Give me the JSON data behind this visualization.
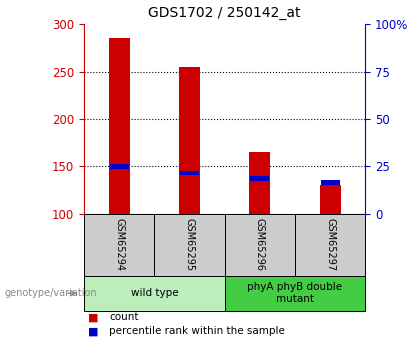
{
  "title": "GDS1702 / 250142_at",
  "samples": [
    "GSM65294",
    "GSM65295",
    "GSM65296",
    "GSM65297"
  ],
  "count_values": [
    285,
    255,
    165,
    130
  ],
  "percentile_values": [
    150,
    143,
    137,
    133
  ],
  "baseline": 100,
  "ylim_left": [
    100,
    300
  ],
  "ylim_right": [
    0,
    100
  ],
  "left_ticks": [
    100,
    150,
    200,
    250,
    300
  ],
  "right_ticks": [
    0,
    25,
    50,
    75,
    100
  ],
  "right_tick_labels": [
    "0",
    "25",
    "50",
    "75",
    "100%"
  ],
  "bar_color": "#cc0000",
  "percentile_color": "#0000cc",
  "background_color": "#ffffff",
  "plot_bg": "#ffffff",
  "left_axis_color": "#cc0000",
  "right_axis_color": "#0000cc",
  "groups": [
    {
      "label": "wild type",
      "samples": [
        0,
        1
      ],
      "color": "#bbeebb"
    },
    {
      "label": "phyA phyB double\nmutant",
      "samples": [
        2,
        3
      ],
      "color": "#44cc44"
    }
  ],
  "sample_box_color": "#cccccc",
  "bar_width": 0.3,
  "group_label_text": "genotype/variation"
}
